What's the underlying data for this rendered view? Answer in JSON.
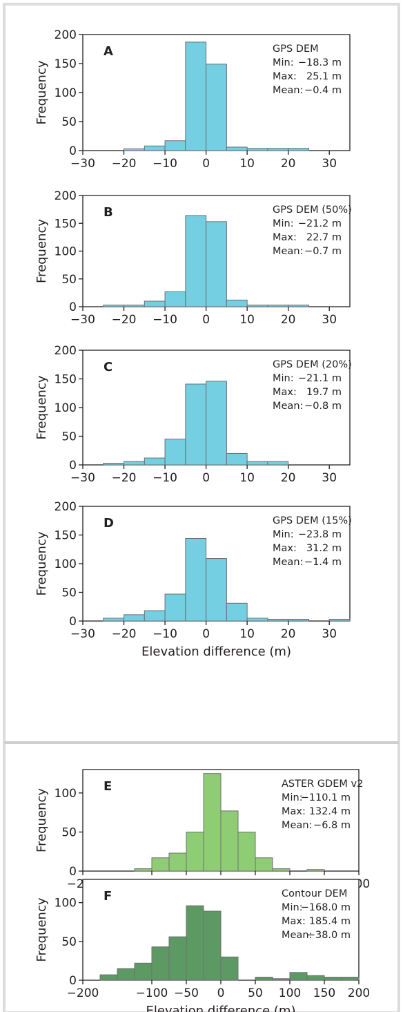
{
  "x_axis_label": "Elevation difference (m)",
  "colors": {
    "blue_bar": "#74cfe2",
    "light_green_bar": "#8fcd75",
    "dark_green_bar": "#5d9a63"
  },
  "chart_data": [
    {
      "type": "bar",
      "panel": "A",
      "ylabel": "Frequency",
      "xlim": [
        -30,
        35
      ],
      "ylim": [
        0,
        200
      ],
      "xticks": [
        -30,
        -20,
        -10,
        0,
        10,
        20,
        30
      ],
      "yticks": [
        0,
        50,
        100,
        150,
        200
      ],
      "bin_width": 5,
      "bin_edges_start": -20,
      "values": [
        3,
        8,
        17,
        187,
        149,
        6,
        4,
        4,
        4
      ],
      "color": "#74cfe2",
      "stats": {
        "name": "GPS DEM",
        "rows": [
          [
            "Min:",
            "−18.3 m"
          ],
          [
            "Max:",
            "25.1 m"
          ],
          [
            "Mean:",
            "−0.4 m"
          ]
        ]
      }
    },
    {
      "type": "bar",
      "panel": "B",
      "ylabel": "Frequency",
      "xlim": [
        -30,
        35
      ],
      "ylim": [
        0,
        200
      ],
      "xticks": [
        -30,
        -20,
        -10,
        0,
        10,
        20,
        30
      ],
      "yticks": [
        0,
        50,
        100,
        150,
        200
      ],
      "bin_width": 5,
      "bin_edges_start": -25,
      "values": [
        3,
        3,
        10,
        27,
        164,
        153,
        12,
        3,
        3,
        3
      ],
      "color": "#74cfe2",
      "stats": {
        "name": "GPS DEM (50%)",
        "rows": [
          [
            "Min:",
            "−21.2 m"
          ],
          [
            "Max:",
            "22.7 m"
          ],
          [
            "Mean:",
            "−0.7 m"
          ]
        ]
      }
    },
    {
      "type": "bar",
      "panel": "C",
      "ylabel": "Frequency",
      "xlim": [
        -30,
        35
      ],
      "ylim": [
        0,
        200
      ],
      "xticks": [
        -30,
        -20,
        -10,
        0,
        10,
        20,
        30
      ],
      "yticks": [
        0,
        50,
        100,
        150,
        200
      ],
      "bin_width": 5,
      "bin_edges_start": -25,
      "values": [
        3,
        6,
        12,
        45,
        141,
        146,
        20,
        6,
        6
      ],
      "color": "#74cfe2",
      "stats": {
        "name": "GPS DEM (20%)",
        "rows": [
          [
            "Min:",
            "−21.1 m"
          ],
          [
            "Max:",
            "19.7 m"
          ],
          [
            "Mean:",
            "−0.8 m"
          ]
        ]
      }
    },
    {
      "type": "bar",
      "panel": "D",
      "ylabel": "Frequency",
      "xlabel": "Elevation difference (m)",
      "xlim": [
        -30,
        35
      ],
      "ylim": [
        0,
        200
      ],
      "xticks": [
        -30,
        -20,
        -10,
        0,
        10,
        20,
        30
      ],
      "yticks": [
        0,
        50,
        100,
        150,
        200
      ],
      "bin_width": 5,
      "bin_edges_start": -25,
      "values": [
        5,
        11,
        18,
        47,
        144,
        109,
        31,
        5,
        3,
        3,
        0,
        3
      ],
      "color": "#74cfe2",
      "stats": {
        "name": "GPS DEM (15%)",
        "rows": [
          [
            "Min:",
            "−23.8 m"
          ],
          [
            "Max:",
            "31.2 m"
          ],
          [
            "Mean:",
            "−1.4 m"
          ]
        ]
      }
    },
    {
      "type": "bar",
      "panel": "E",
      "ylabel": "Frequency",
      "xlim": [
        -200,
        200
      ],
      "ylim": [
        0,
        130
      ],
      "xticks": [
        -200,
        -100,
        -50,
        0,
        50,
        100,
        150,
        200
      ],
      "yticks": [
        0,
        50,
        100
      ],
      "bin_width": 25,
      "bin_edges_start": -125,
      "values": [
        3,
        17,
        23,
        50,
        125,
        77,
        50,
        17,
        3,
        0,
        2
      ],
      "color": "#8fcd75",
      "stats": {
        "name": "ASTER GDEM v2",
        "rows": [
          [
            "Min:",
            "−110.1 m"
          ],
          [
            "Max:",
            "132.4 m"
          ],
          [
            "Mean:",
            "−6.8 m"
          ]
        ]
      }
    },
    {
      "type": "bar",
      "panel": "F",
      "ylabel": "Frequency",
      "xlabel": "Elevation difference (m)",
      "xlim": [
        -200,
        200
      ],
      "ylim": [
        0,
        130
      ],
      "xticks": [
        -200,
        -100,
        -50,
        0,
        50,
        100,
        150,
        200
      ],
      "yticks": [
        0,
        50,
        100
      ],
      "bin_width": 25,
      "bin_edges_start": -175,
      "values": [
        7,
        15,
        22,
        43,
        56,
        96,
        89,
        30,
        0,
        4,
        2,
        10,
        6,
        4,
        4
      ],
      "color": "#5d9a63",
      "stats": {
        "name": "Contour DEM",
        "rows": [
          [
            "Min:",
            "−168.0 m"
          ],
          [
            "Max:",
            "185.4 m"
          ],
          [
            "Mean:",
            "−38.0 m"
          ]
        ]
      }
    }
  ]
}
